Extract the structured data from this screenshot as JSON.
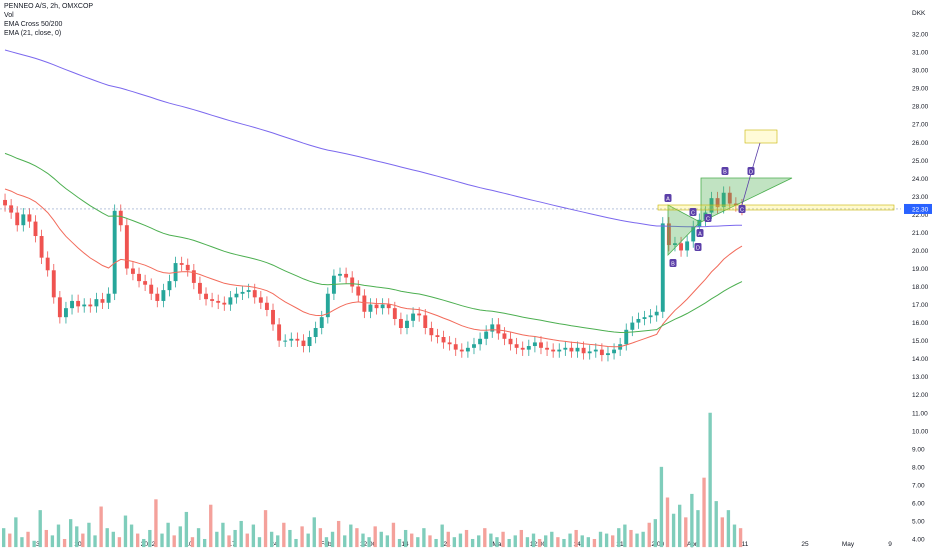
{
  "legend": {
    "symbol": "PENNEO A/S, 2h, OMXCOP",
    "volume": "Vol",
    "ema_cross": "EMA Cross 50/200",
    "ema_21": "EMA (21, close, 0)"
  },
  "chart_data": {
    "type": "candlestick",
    "currency": "DKK",
    "current_price": "22.30",
    "colors": {
      "up": "#26a69a",
      "down": "#ef5350",
      "ema50": "#4caf50",
      "ema200": "#7b68ee",
      "ema21": "#f26b5b",
      "price_tag": "#2962ff",
      "pattern": "#5b3fa8"
    },
    "y_axis": {
      "ticks": [
        "4.00",
        "5.00",
        "6.00",
        "7.00",
        "8.00",
        "9.00",
        "10.00",
        "11.00",
        "12.00",
        "13.00",
        "14.00",
        "15.00",
        "16.00",
        "17.00",
        "18.00",
        "19.00",
        "20.00",
        "21.00",
        "22.00",
        "23.00",
        "24.00",
        "25.00",
        "26.00",
        "27.00",
        "28.00",
        "29.00",
        "30.00",
        "31.00",
        "32.00"
      ],
      "range": [
        3.5,
        33.5
      ]
    },
    "x_axis": {
      "ticks": [
        "13",
        "20",
        "2022",
        "10",
        "17",
        "24",
        "Feb",
        "12:00",
        "14",
        "21",
        "Mar",
        "12:00",
        "14",
        "21",
        "12:00",
        "Apr",
        "11",
        "25",
        "May",
        "9"
      ]
    },
    "price_series": {
      "start": 22.8,
      "closes": [
        22.5,
        22.1,
        21.4,
        22.0,
        21.6,
        20.8,
        19.6,
        18.9,
        17.4,
        16.3,
        16.8,
        17.2,
        16.9,
        17.0,
        16.9,
        17.3,
        17.1,
        17.6,
        22.2,
        21.4,
        19.0,
        18.7,
        18.3,
        18.1,
        17.6,
        17.2,
        17.8,
        18.3,
        19.3,
        19.2,
        18.9,
        18.2,
        17.6,
        17.3,
        17.2,
        17.1,
        17.0,
        17.4,
        17.6,
        17.7,
        17.8,
        17.4,
        17.1,
        16.7,
        15.9,
        15.0,
        15.0,
        15.1,
        15.0,
        14.7,
        15.2,
        15.7,
        16.3,
        17.6,
        18.6,
        18.7,
        18.5,
        18.0,
        17.5,
        16.6,
        17.0,
        16.8,
        17.0,
        16.8,
        16.2,
        15.7,
        16.1,
        16.5,
        16.4,
        15.7,
        15.3,
        15.2,
        14.9,
        14.8,
        14.5,
        14.4,
        14.6,
        14.8,
        15.1,
        15.5,
        15.9,
        15.4,
        15.1,
        14.8,
        14.6,
        14.5,
        14.7,
        14.9,
        14.6,
        14.5,
        14.4,
        14.5,
        14.6,
        14.4,
        14.6,
        14.3,
        14.4,
        14.5,
        14.2,
        14.3,
        14.5,
        14.8,
        15.6,
        16.0,
        16.2,
        16.3,
        16.4,
        16.6,
        21.5,
        20.3,
        20.4,
        20.0,
        20.5,
        21.3,
        21.7,
        22.1,
        22.9,
        22.4,
        23.2,
        22.6,
        22.5,
        22.3
      ]
    },
    "volume_series": {
      "values": [
        4.6,
        4.3,
        5.2,
        4.1,
        4.4,
        3.9,
        5.6,
        4.5,
        4.2,
        4.8,
        4.0,
        5.1,
        4.7,
        4.3,
        4.9,
        4.2,
        5.8,
        4.6,
        4.4,
        4.1,
        5.3,
        4.8,
        4.3,
        4.0,
        4.5,
        6.2,
        4.3,
        4.9,
        4.2,
        4.7,
        5.5,
        4.1,
        4.6,
        4.0,
        5.9,
        4.4,
        4.9,
        4.2,
        4.5,
        5.0,
        4.3,
        4.8,
        4.1,
        5.6,
        4.4,
        4.2,
        4.9,
        4.5,
        4.0,
        4.7,
        4.3,
        5.2,
        4.6,
        4.1,
        4.4,
        5.0,
        4.2,
        4.8,
        4.6,
        4.3,
        4.1,
        4.7,
        4.4,
        4.2,
        4.9,
        4.0,
        4.5,
        4.3,
        4.1,
        4.6,
        4.2,
        4.0,
        4.8,
        4.4,
        4.1,
        4.3,
        4.5,
        4.0,
        4.2,
        4.6,
        4.3,
        4.1,
        4.4,
        4.0,
        4.2,
        4.5,
        4.1,
        4.3,
        4.0,
        4.2,
        4.4,
        4.1,
        4.0,
        4.3,
        4.5,
        4.2,
        4.1,
        4.0,
        4.4,
        4.3,
        4.2,
        4.6,
        4.8,
        4.5,
        4.3,
        4.4,
        4.9,
        5.1,
        8.0,
        6.3,
        5.4,
        5.9,
        5.2,
        6.5,
        5.6,
        7.4,
        11.0,
        6.1,
        5.2,
        5.6,
        4.8,
        4.6
      ]
    },
    "pattern": {
      "points": [
        "A",
        "B",
        "C",
        "D",
        "A",
        "C",
        "B",
        "C",
        "D"
      ],
      "target_label": ""
    }
  }
}
